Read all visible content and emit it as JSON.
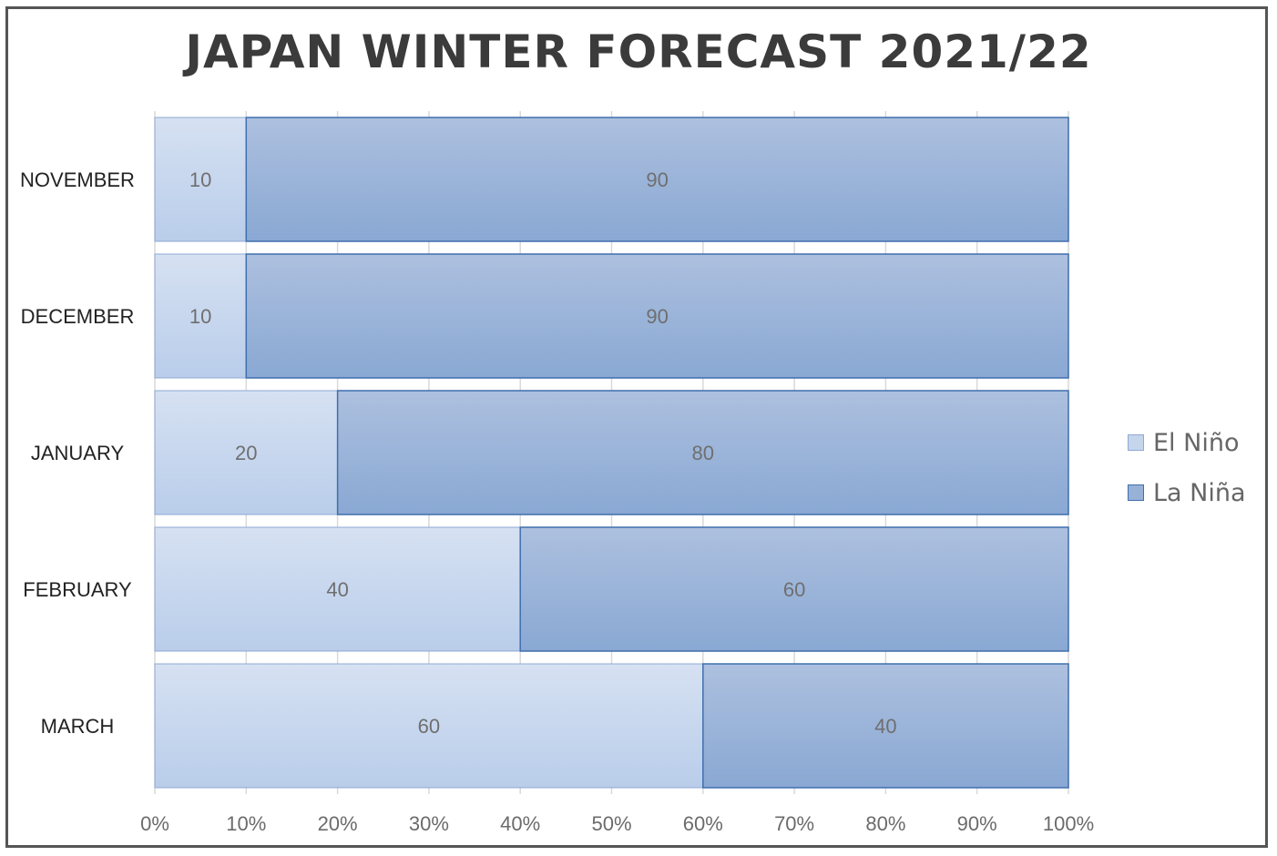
{
  "chart_data": {
    "type": "bar",
    "orientation": "horizontal",
    "stacked": true,
    "title": "JAPAN WINTER FORECAST 2021/22",
    "categories": [
      "NOVEMBER",
      "DECEMBER",
      "JANUARY",
      "FEBRUARY",
      "MARCH"
    ],
    "series": [
      {
        "name": "El Niño",
        "values": [
          10,
          10,
          20,
          40,
          60
        ],
        "color": "#c5d5ec",
        "border": "#8fa9d4"
      },
      {
        "name": "La Niña",
        "values": [
          90,
          90,
          80,
          60,
          40
        ],
        "color": "#98b1d6",
        "border": "#3f6fad"
      }
    ],
    "x_ticks": [
      "0%",
      "10%",
      "20%",
      "30%",
      "40%",
      "50%",
      "60%",
      "70%",
      "80%",
      "90%",
      "100%"
    ],
    "xlim": [
      0,
      100
    ],
    "xlabel": "",
    "ylabel": "",
    "grid": true,
    "legend_position": "right"
  }
}
